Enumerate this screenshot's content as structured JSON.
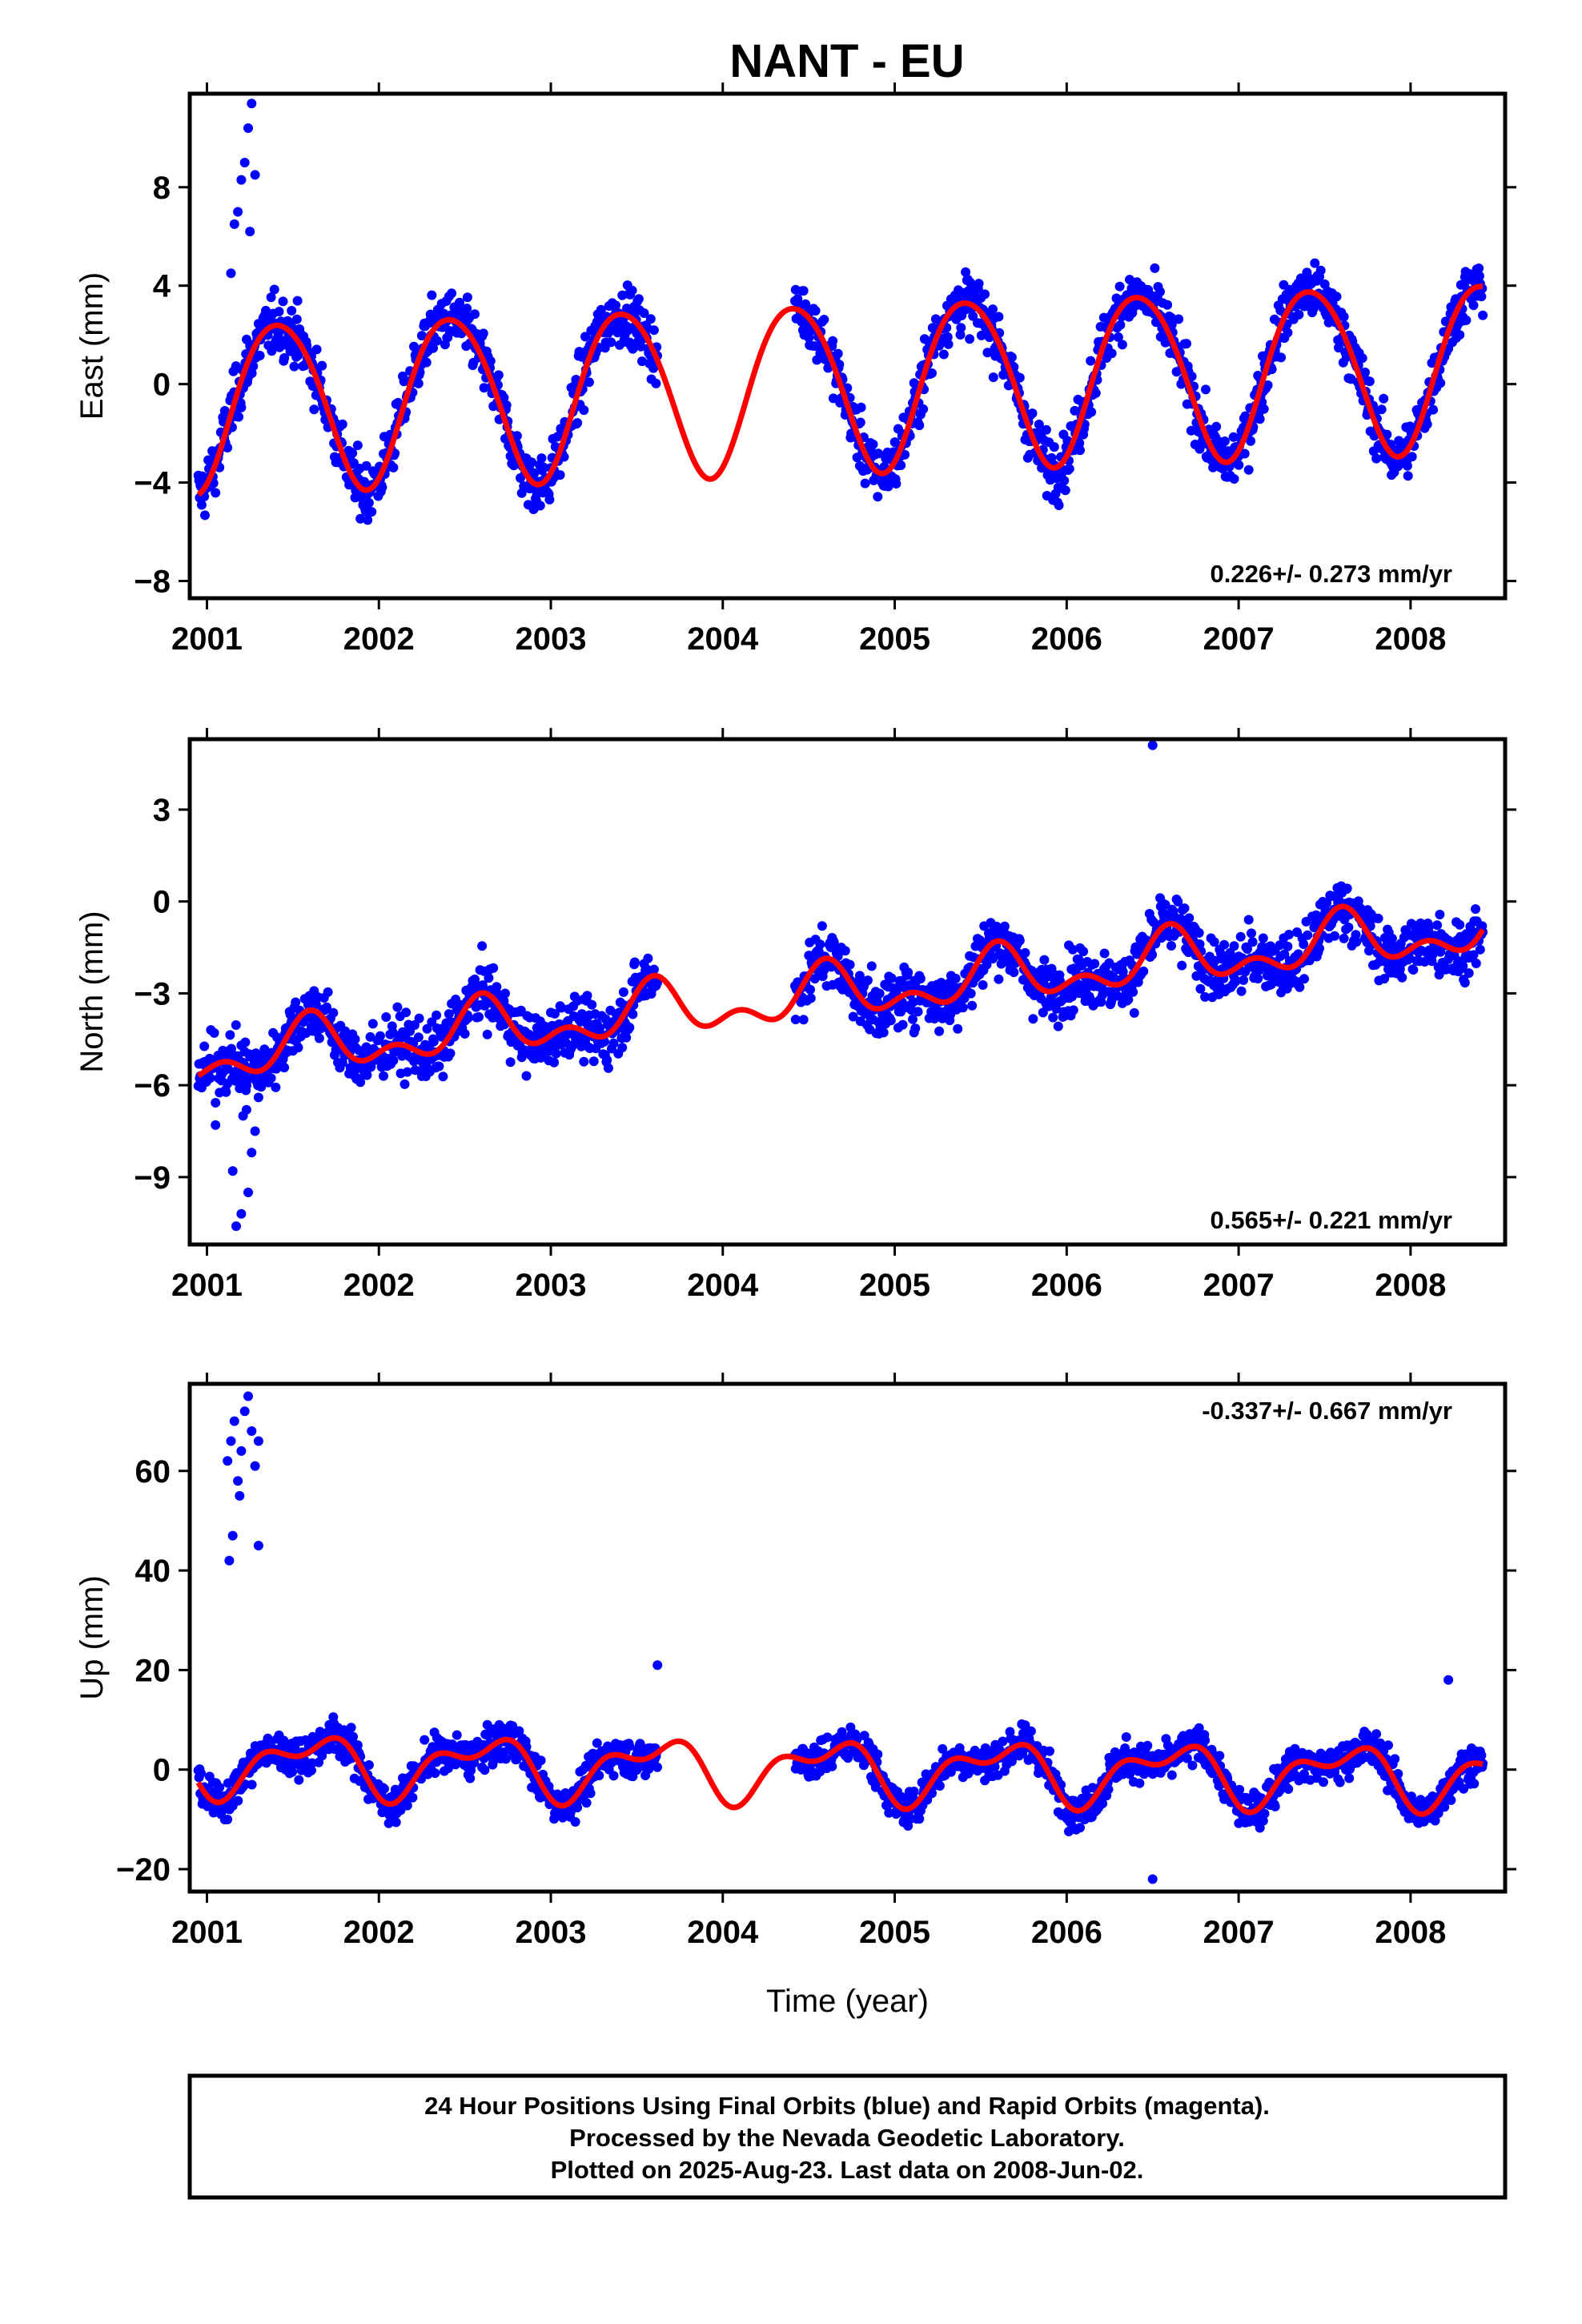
{
  "title": "NANT - EU",
  "footer": {
    "line1": "24 Hour Positions Using Final Orbits (blue) and Rapid Orbits (magenta).",
    "line2": "Processed by the Nevada Geodetic Laboratory.",
    "line3": "Plotted on 2025-Aug-23. Last data on 2008-Jun-02."
  },
  "colors": {
    "points": "#0000ff",
    "fit": "#ff0000",
    "axis": "#000000"
  },
  "chart_data": [
    {
      "type": "scatter",
      "title": "",
      "ylabel": "East (mm)",
      "xlabel": "",
      "xlim": [
        2000.9,
        2008.55
      ],
      "ylim": [
        -8.7,
        11.8
      ],
      "xticks": [
        2001,
        2002,
        2003,
        2004,
        2005,
        2006,
        2007,
        2008
      ],
      "yticks": [
        -8,
        -4,
        0,
        4,
        8
      ],
      "ytick_labels": [
        "−8",
        "−4",
        "0",
        "4",
        "8"
      ],
      "rate_text": "0.226+/- 0.273 mm/yr",
      "rate_position": "bottom-right",
      "grid": false,
      "segments": [
        [
          2000.95,
          2003.62
        ],
        [
          2004.42,
          2008.42
        ]
      ],
      "fit": {
        "mean": 0.0,
        "trend": 0.226,
        "amp": 3.4,
        "peak": 0.42,
        "semi_amp": 0.3,
        "semi_peak": 0.2
      },
      "outliers": [
        {
          "x": 2001.16,
          "y": 6.5
        },
        {
          "x": 2001.18,
          "y": 7.0
        },
        {
          "x": 2001.2,
          "y": 8.3
        },
        {
          "x": 2001.22,
          "y": 9.0
        },
        {
          "x": 2001.24,
          "y": 10.4
        },
        {
          "x": 2001.26,
          "y": 11.4
        },
        {
          "x": 2001.28,
          "y": 8.5
        },
        {
          "x": 2001.14,
          "y": 4.5
        },
        {
          "x": 2001.25,
          "y": 6.2
        }
      ],
      "noise": 1.1
    },
    {
      "type": "scatter",
      "title": "",
      "ylabel": "North (mm)",
      "xlabel": "",
      "xlim": [
        2000.9,
        2008.55
      ],
      "ylim": [
        -11.2,
        5.3
      ],
      "xticks": [
        2001,
        2002,
        2003,
        2004,
        2005,
        2006,
        2007,
        2008
      ],
      "yticks": [
        -9,
        -6,
        -3,
        0,
        3
      ],
      "ytick_labels": [
        "−9",
        "−6",
        "−3",
        "0",
        "3"
      ],
      "rate_text": "0.565+/- 0.221 mm/yr",
      "rate_position": "bottom-right",
      "grid": false,
      "segments": [
        [
          2000.95,
          2003.62
        ],
        [
          2004.42,
          2008.42
        ]
      ],
      "fit": {
        "mean": -3.0,
        "trend": 0.565,
        "amp": 0.7,
        "peak": 0.6,
        "semi_amp": 0.5,
        "semi_peak": 0.1
      },
      "outliers": [
        {
          "x": 2001.05,
          "y": -7.3
        },
        {
          "x": 2001.15,
          "y": -8.8
        },
        {
          "x": 2001.17,
          "y": -10.6
        },
        {
          "x": 2001.2,
          "y": -10.2
        },
        {
          "x": 2001.24,
          "y": -9.5
        },
        {
          "x": 2001.26,
          "y": -8.2
        },
        {
          "x": 2001.23,
          "y": -6.8
        },
        {
          "x": 2001.21,
          "y": -7.0
        },
        {
          "x": 2001.19,
          "y": -6.1
        },
        {
          "x": 2001.18,
          "y": -5.5
        },
        {
          "x": 2001.28,
          "y": -7.5
        },
        {
          "x": 2001.3,
          "y": -6.4
        },
        {
          "x": 2001.1,
          "y": -5.0
        },
        {
          "x": 2005.45,
          "y": -3.4
        },
        {
          "x": 2006.5,
          "y": 5.1
        }
      ],
      "noise": 0.9
    },
    {
      "type": "scatter",
      "title": "",
      "ylabel": "Up (mm)",
      "xlabel": "Time (year)",
      "xlim": [
        2000.9,
        2008.55
      ],
      "ylim": [
        -24.5,
        77.5
      ],
      "xticks": [
        2001,
        2002,
        2003,
        2004,
        2005,
        2006,
        2007,
        2008
      ],
      "yticks": [
        -20,
        0,
        20,
        40,
        60
      ],
      "ytick_labels": [
        "−20",
        "0",
        "20",
        "40",
        "60"
      ],
      "rate_text": "-0.337+/- 0.667 mm/yr",
      "rate_position": "top-right",
      "grid": false,
      "segments": [
        [
          2000.95,
          2003.62
        ],
        [
          2004.42,
          2008.42
        ]
      ],
      "fit": {
        "mean": 0.0,
        "trend": -0.337,
        "amp": 5.0,
        "peak": 0.6,
        "semi_amp": 3.0,
        "semi_peak": 0.3
      },
      "outliers": [
        {
          "x": 2001.12,
          "y": 62
        },
        {
          "x": 2001.14,
          "y": 66
        },
        {
          "x": 2001.16,
          "y": 70
        },
        {
          "x": 2001.18,
          "y": 58
        },
        {
          "x": 2001.2,
          "y": 64
        },
        {
          "x": 2001.22,
          "y": 72
        },
        {
          "x": 2001.24,
          "y": 75
        },
        {
          "x": 2001.26,
          "y": 68
        },
        {
          "x": 2001.28,
          "y": 61
        },
        {
          "x": 2001.3,
          "y": 66
        },
        {
          "x": 2001.13,
          "y": 42
        },
        {
          "x": 2001.15,
          "y": 47
        },
        {
          "x": 2001.3,
          "y": 45
        },
        {
          "x": 2001.19,
          "y": 55
        },
        {
          "x": 2003.62,
          "y": 21
        },
        {
          "x": 2006.5,
          "y": -22
        },
        {
          "x": 2008.22,
          "y": 18
        }
      ],
      "noise": 3.5
    }
  ]
}
